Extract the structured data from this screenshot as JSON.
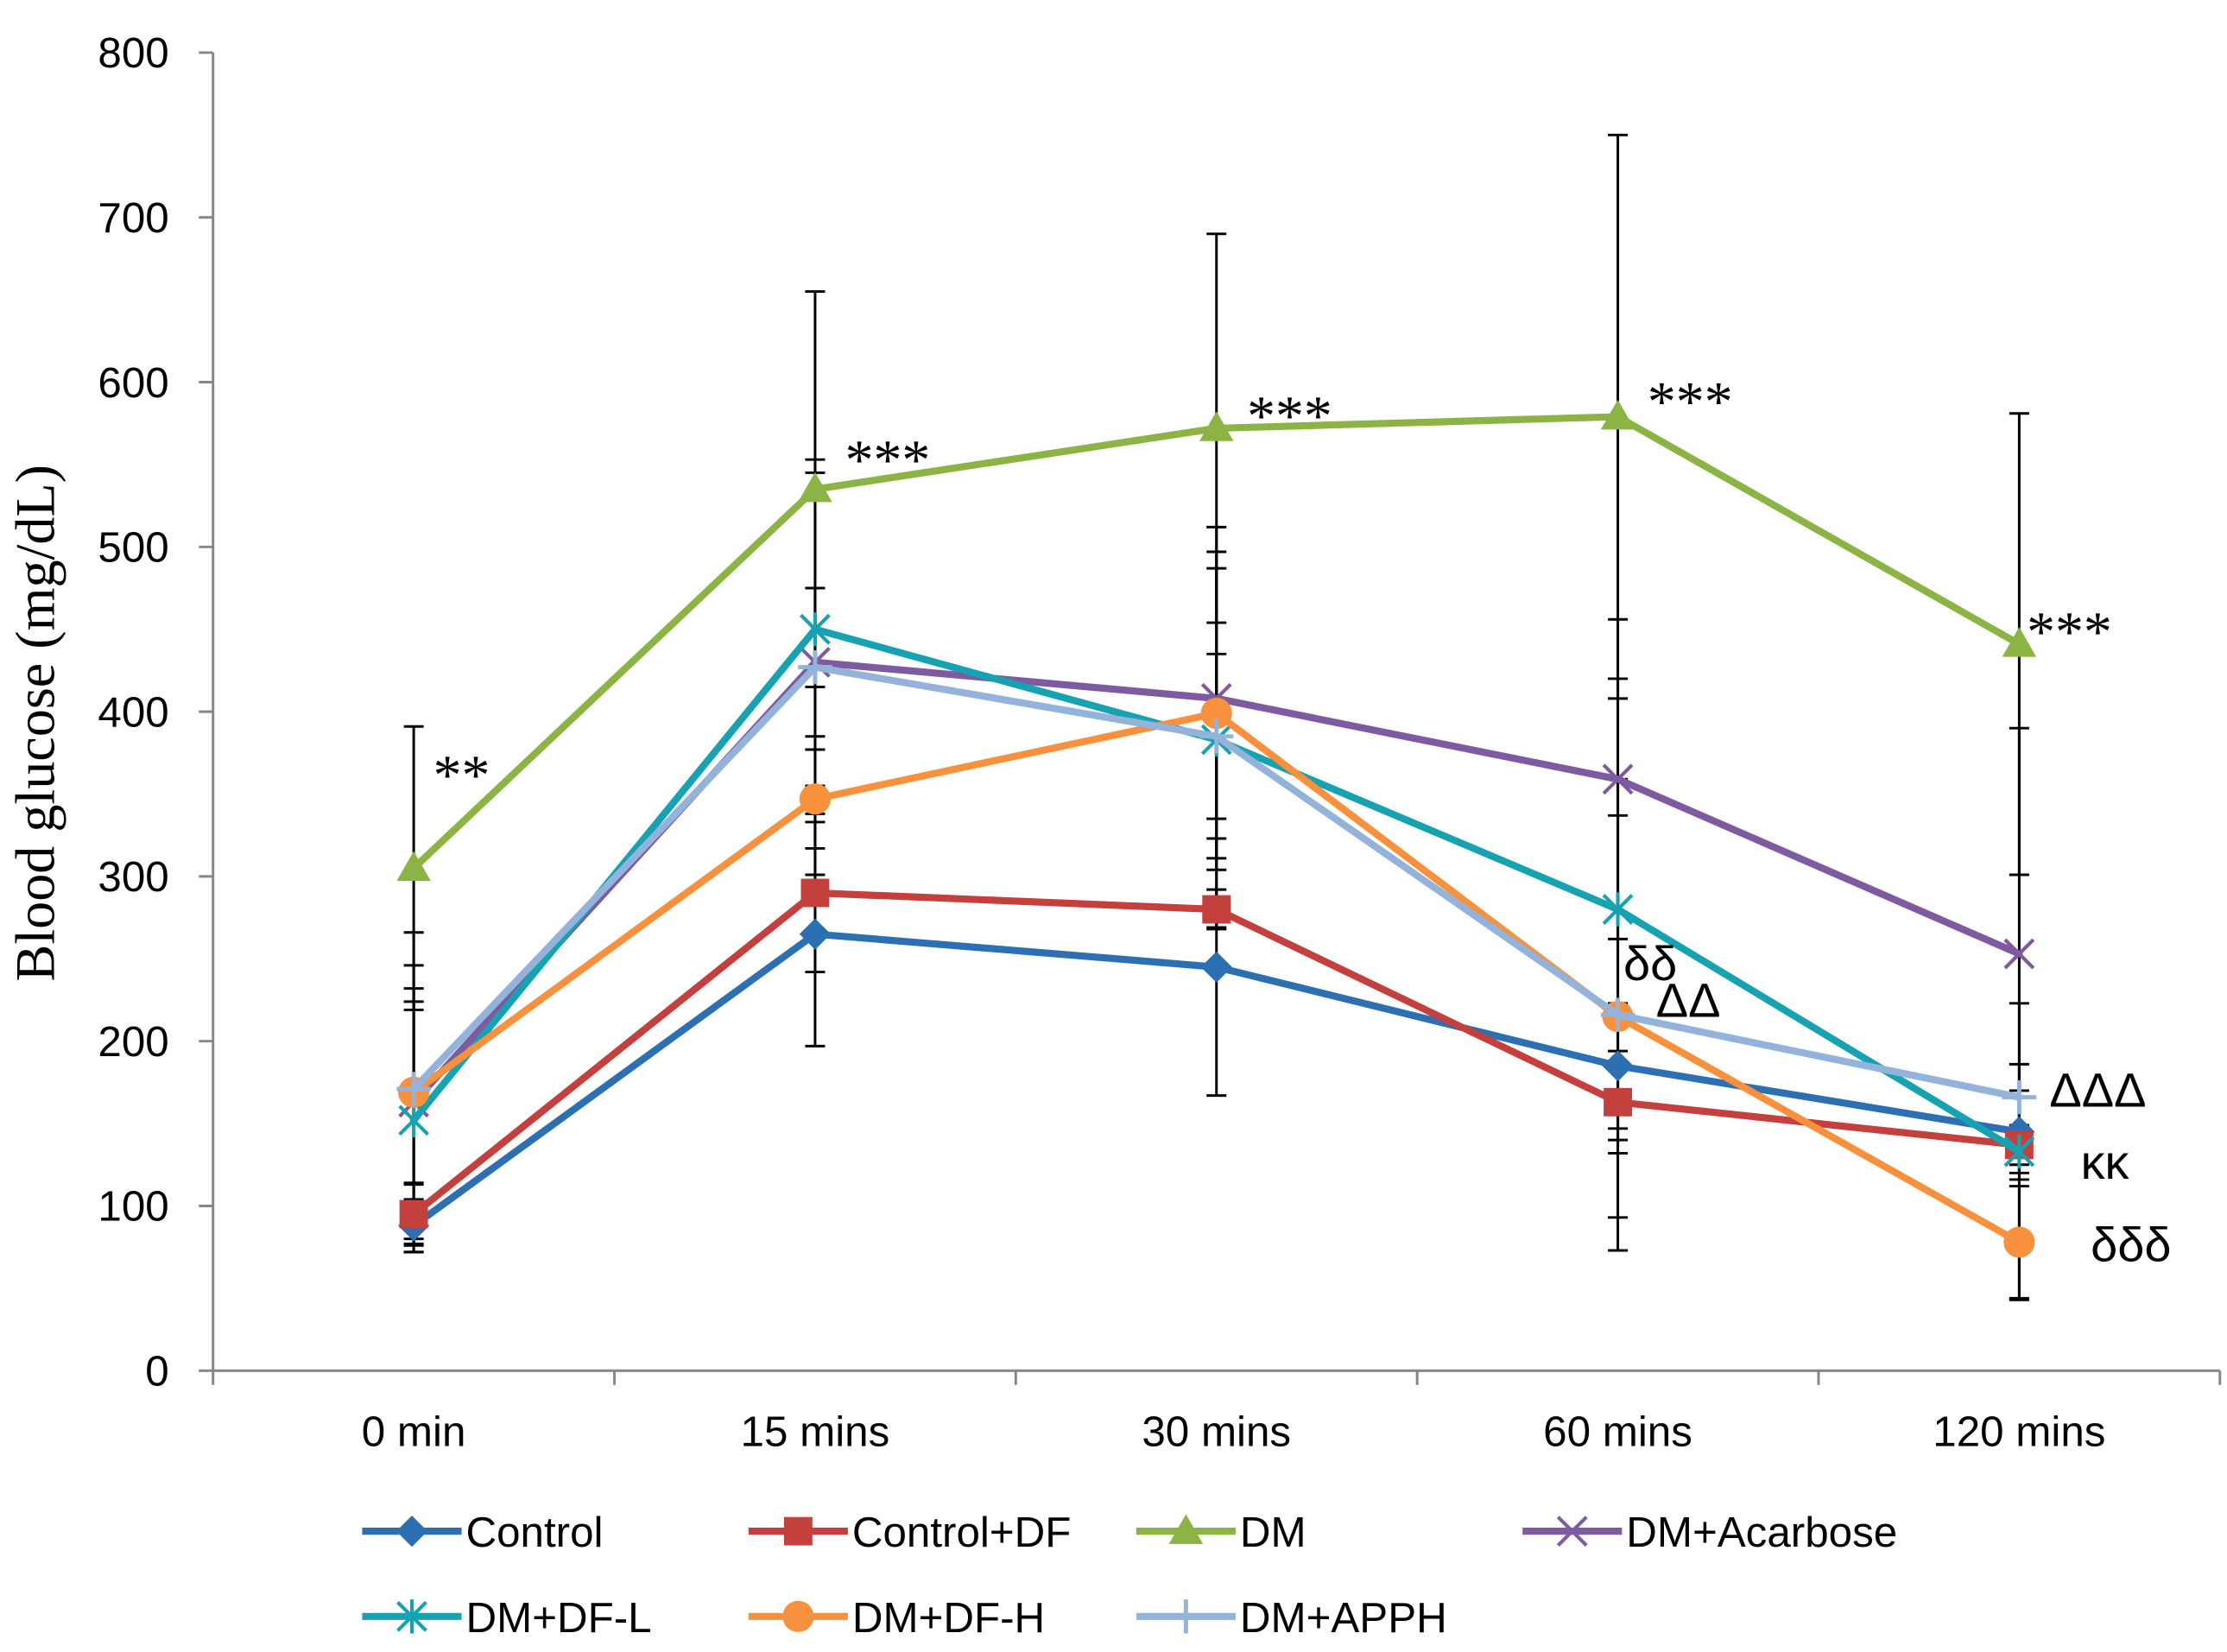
{
  "chart_data": {
    "type": "line",
    "ylabel": "Blood glucose (mg/dL)",
    "categories": [
      "0 min",
      "15 mins",
      "30 mins",
      "60 mins",
      "120 mins"
    ],
    "ylim": [
      0,
      800
    ],
    "yticks": [
      0,
      100,
      200,
      300,
      400,
      500,
      600,
      700,
      800
    ],
    "grid": false,
    "error_bars": true,
    "legend_position": "bottom",
    "series": [
      {
        "name": "Control",
        "color": "#2C6FB3",
        "marker": "diamond",
        "values": [
          88,
          265,
          245,
          185,
          145
        ],
        "errors": [
          16,
          68,
          78,
          38,
          25
        ]
      },
      {
        "name": "Control+DF",
        "color": "#C4403D",
        "marker": "square",
        "values": [
          95,
          290,
          280,
          163,
          137
        ],
        "errors": [
          18,
          48,
          12,
          31,
          12
        ]
      },
      {
        "name": "DM",
        "color": "#8CB445",
        "marker": "triangle",
        "values": [
          305,
          535,
          572,
          579,
          441
        ],
        "errors": [
          86,
          120,
          118,
          171,
          140
        ]
      },
      {
        "name": "DM+Acarbose",
        "color": "#7E5BA1",
        "marker": "x",
        "values": [
          163,
          430,
          408,
          359,
          253
        ],
        "errors": [
          83,
          45,
          104,
          97,
          137
        ]
      },
      {
        "name": "DM+DF-L",
        "color": "#17A2B2",
        "marker": "star",
        "values": [
          152,
          450,
          383,
          280,
          133
        ],
        "errors": [
          80,
          95,
          114,
          140,
          90
        ]
      },
      {
        "name": "DM+DF-H",
        "color": "#F7913D",
        "marker": "circle",
        "values": [
          169,
          347,
          399,
          215,
          78
        ],
        "errors": [
          55,
          30,
          88,
          122,
          34
        ]
      },
      {
        "name": "DM+APPH",
        "color": "#93B3DA",
        "marker": "plus",
        "values": [
          171,
          427,
          385,
          216,
          166
        ],
        "errors": [
          95,
          126,
          50,
          143,
          20
        ]
      }
    ],
    "annotations": [
      "**",
      "***",
      "***",
      "***",
      "***",
      "δδ",
      "ΔΔ",
      "ΔΔΔ",
      "κκ",
      "δδδ"
    ]
  }
}
